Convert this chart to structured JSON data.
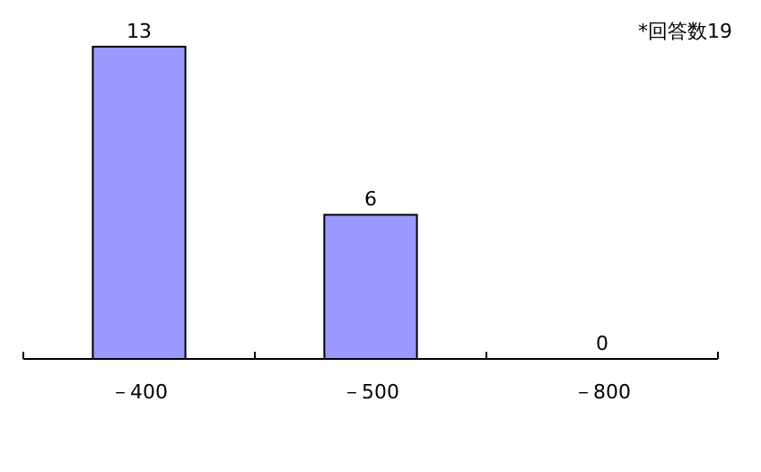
{
  "chart_data": {
    "type": "bar",
    "categories": [
      "－400",
      "－500",
      "－800"
    ],
    "values": [
      13,
      6,
      0
    ],
    "color": "#9999ff",
    "data_labels": true,
    "annotations": [
      "*回答数19"
    ]
  }
}
